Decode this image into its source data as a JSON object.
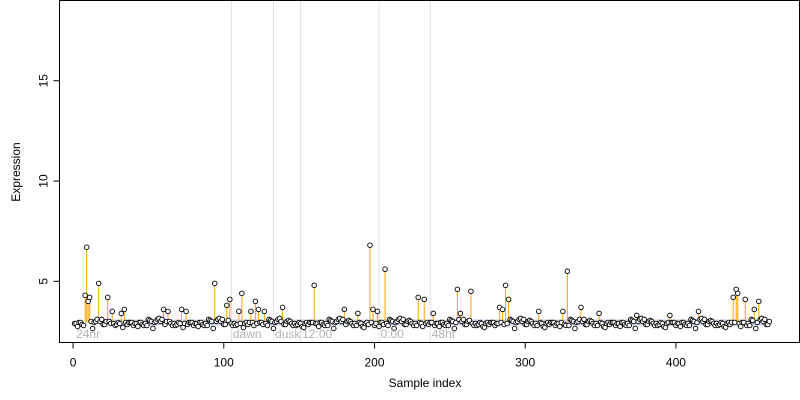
{
  "chart_data": {
    "type": "scatter",
    "title": "",
    "xlabel": "Sample index",
    "ylabel": "Expression",
    "xlim": [
      -9,
      482
    ],
    "ylim": [
      1.95,
      19.0
    ],
    "xticks": [
      0,
      100,
      200,
      300,
      400
    ],
    "yticks": [
      5,
      10,
      15
    ],
    "baseline": 2.95,
    "colors": {
      "stem": "#ffa500",
      "baseline_band": "#9ab3e0",
      "divider": "#e0e0e0",
      "region_label": "#b3b3b3",
      "point_edge": "#000000",
      "point_fill": "#ffffff"
    },
    "regions": [
      {
        "label": "24hr",
        "x": 2,
        "divider": null
      },
      {
        "label": "dawn",
        "x": 106,
        "divider": 105
      },
      {
        "label": "dusk",
        "x": 134,
        "divider": 133
      },
      {
        "label": "12:00",
        "x": 152,
        "divider": 151
      },
      {
        "label": "0:00",
        "x": 204,
        "divider": 203
      },
      {
        "label": "48hr",
        "x": 238,
        "divider": 237
      }
    ],
    "peaks": [
      {
        "x": 8,
        "y": 4.3
      },
      {
        "x": 9,
        "y": 6.7
      },
      {
        "x": 10,
        "y": 4.0
      },
      {
        "x": 11,
        "y": 4.2
      },
      {
        "x": 17,
        "y": 4.9
      },
      {
        "x": 23,
        "y": 4.2
      },
      {
        "x": 26,
        "y": 3.5
      },
      {
        "x": 32,
        "y": 3.4
      },
      {
        "x": 34,
        "y": 3.6
      },
      {
        "x": 60,
        "y": 3.6
      },
      {
        "x": 63,
        "y": 3.5
      },
      {
        "x": 72,
        "y": 3.6
      },
      {
        "x": 75,
        "y": 3.5
      },
      {
        "x": 94,
        "y": 4.9
      },
      {
        "x": 102,
        "y": 3.8
      },
      {
        "x": 104,
        "y": 4.1
      },
      {
        "x": 110,
        "y": 3.5
      },
      {
        "x": 112,
        "y": 4.4
      },
      {
        "x": 118,
        "y": 3.5
      },
      {
        "x": 121,
        "y": 4.0
      },
      {
        "x": 123,
        "y": 3.6
      },
      {
        "x": 127,
        "y": 3.5
      },
      {
        "x": 139,
        "y": 3.7
      },
      {
        "x": 160,
        "y": 4.8
      },
      {
        "x": 180,
        "y": 3.6
      },
      {
        "x": 189,
        "y": 3.4
      },
      {
        "x": 197,
        "y": 6.8
      },
      {
        "x": 199,
        "y": 3.6
      },
      {
        "x": 202,
        "y": 3.5
      },
      {
        "x": 207,
        "y": 5.6
      },
      {
        "x": 229,
        "y": 4.2
      },
      {
        "x": 233,
        "y": 4.1
      },
      {
        "x": 239,
        "y": 3.4
      },
      {
        "x": 255,
        "y": 4.6
      },
      {
        "x": 257,
        "y": 3.4
      },
      {
        "x": 264,
        "y": 4.5
      },
      {
        "x": 283,
        "y": 3.7
      },
      {
        "x": 285,
        "y": 3.6
      },
      {
        "x": 287,
        "y": 4.8
      },
      {
        "x": 289,
        "y": 4.1
      },
      {
        "x": 309,
        "y": 3.5
      },
      {
        "x": 325,
        "y": 3.5
      },
      {
        "x": 328,
        "y": 5.5
      },
      {
        "x": 337,
        "y": 3.7
      },
      {
        "x": 349,
        "y": 3.4
      },
      {
        "x": 374,
        "y": 3.3
      },
      {
        "x": 396,
        "y": 3.3
      },
      {
        "x": 415,
        "y": 3.5
      },
      {
        "x": 438,
        "y": 4.2
      },
      {
        "x": 440,
        "y": 4.6
      },
      {
        "x": 441,
        "y": 4.4
      },
      {
        "x": 446,
        "y": 4.1
      },
      {
        "x": 452,
        "y": 3.6
      },
      {
        "x": 455,
        "y": 4.0
      }
    ],
    "base_values": [
      2.8,
      3.0,
      2.9,
      2.85,
      2.95,
      3.05,
      2.75,
      2.9,
      3.1,
      2.8,
      2.95,
      2.85,
      3.0,
      2.7,
      2.9,
      3.05,
      2.85,
      2.95,
      2.8,
      3.1,
      2.9,
      2.75,
      3.0,
      2.85,
      2.95,
      2.9,
      3.15,
      2.8,
      2.95,
      2.65,
      3.0,
      2.9
    ],
    "n_points": 462
  }
}
